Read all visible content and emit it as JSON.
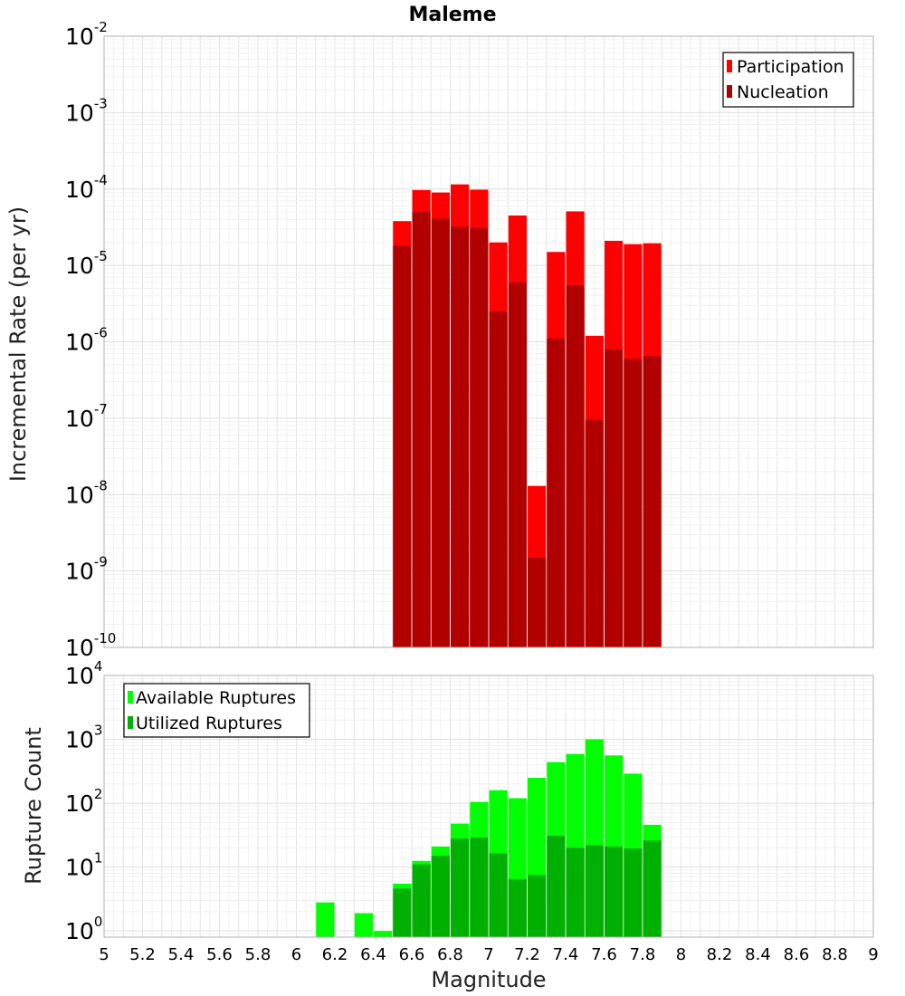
{
  "chart_data": [
    {
      "type": "bar",
      "title": "Maleme",
      "xlabel": "",
      "ylabel": "Incremental Rate (per yr)",
      "yscale": "log",
      "xlim": [
        5,
        9
      ],
      "ylim": [
        1e-10,
        0.01
      ],
      "x": [
        6.55,
        6.65,
        6.75,
        6.85,
        6.95,
        7.05,
        7.15,
        7.25,
        7.35,
        7.45,
        7.55,
        7.65,
        7.75,
        7.85
      ],
      "series": [
        {
          "name": "Participation",
          "color": "#ff0000",
          "values": [
            3.8e-05,
            9.7e-05,
            9e-05,
            0.000115,
            9.8e-05,
            2e-05,
            4.5e-05,
            1.3e-08,
            1.5e-05,
            5.1e-05,
            1.2e-06,
            2.1e-05,
            1.9e-05,
            1.95e-05
          ]
        },
        {
          "name": "Nucleation",
          "color": "#b00000",
          "values": [
            1.8e-05,
            5e-05,
            4.1e-05,
            3.2e-05,
            3.1e-05,
            2.5e-06,
            6e-06,
            1.5e-09,
            1.1e-06,
            5.5e-06,
            9.5e-08,
            8e-07,
            6e-07,
            6.5e-07
          ]
        }
      ],
      "legend": {
        "position": "top-right",
        "entries": [
          "Participation",
          "Nucleation"
        ]
      },
      "y_ticks": [
        {
          "base": "10",
          "exp": "-10",
          "value": 1e-10
        },
        {
          "base": "10",
          "exp": "-9",
          "value": 1e-09
        },
        {
          "base": "10",
          "exp": "-8",
          "value": 1e-08
        },
        {
          "base": "10",
          "exp": "-7",
          "value": 1e-07
        },
        {
          "base": "10",
          "exp": "-6",
          "value": 1e-06
        },
        {
          "base": "10",
          "exp": "-5",
          "value": 1e-05
        },
        {
          "base": "10",
          "exp": "-4",
          "value": 0.0001
        },
        {
          "base": "10",
          "exp": "-3",
          "value": 0.001
        },
        {
          "base": "10",
          "exp": "-2",
          "value": 0.01
        }
      ],
      "grid": true
    },
    {
      "type": "bar",
      "title": "",
      "xlabel": "Magnitude",
      "ylabel": "Rupture Count",
      "yscale": "log",
      "xlim": [
        5,
        9
      ],
      "ylim": [
        0.8,
        10000
      ],
      "x": [
        6.15,
        6.35,
        6.45,
        6.55,
        6.65,
        6.75,
        6.85,
        6.95,
        7.05,
        7.15,
        7.25,
        7.35,
        7.45,
        7.55,
        7.65,
        7.75,
        7.85
      ],
      "series": [
        {
          "name": "Available Ruptures",
          "color": "#00ff00",
          "values": [
            2.8,
            1.9,
            1.0,
            5.5,
            12.5,
            21,
            48,
            105,
            160,
            120,
            250,
            440,
            590,
            1000,
            560,
            290,
            46
          ]
        },
        {
          "name": "Utilized Ruptures",
          "color": "#00b000",
          "values": [
            0,
            0,
            0,
            4.6,
            11,
            15,
            28,
            29,
            16.5,
            6.5,
            7.5,
            31,
            20,
            22,
            21,
            19.5,
            26
          ]
        }
      ],
      "legend": {
        "position": "top-left",
        "entries": [
          "Available Ruptures",
          "Utilized Ruptures"
        ]
      },
      "x_ticks": [
        "5",
        "5.2",
        "5.4",
        "5.6",
        "5.8",
        "6",
        "6.2",
        "6.4",
        "6.6",
        "6.8",
        "7",
        "7.2",
        "7.4",
        "7.6",
        "7.8",
        "8",
        "8.2",
        "8.4",
        "8.6",
        "8.8",
        "9"
      ],
      "y_ticks": [
        {
          "base": "10",
          "exp": "0",
          "value": 1
        },
        {
          "base": "10",
          "exp": "1",
          "value": 10
        },
        {
          "base": "10",
          "exp": "2",
          "value": 100
        },
        {
          "base": "10",
          "exp": "3",
          "value": 1000
        },
        {
          "base": "10",
          "exp": "4",
          "value": 10000
        }
      ],
      "grid": true
    }
  ]
}
